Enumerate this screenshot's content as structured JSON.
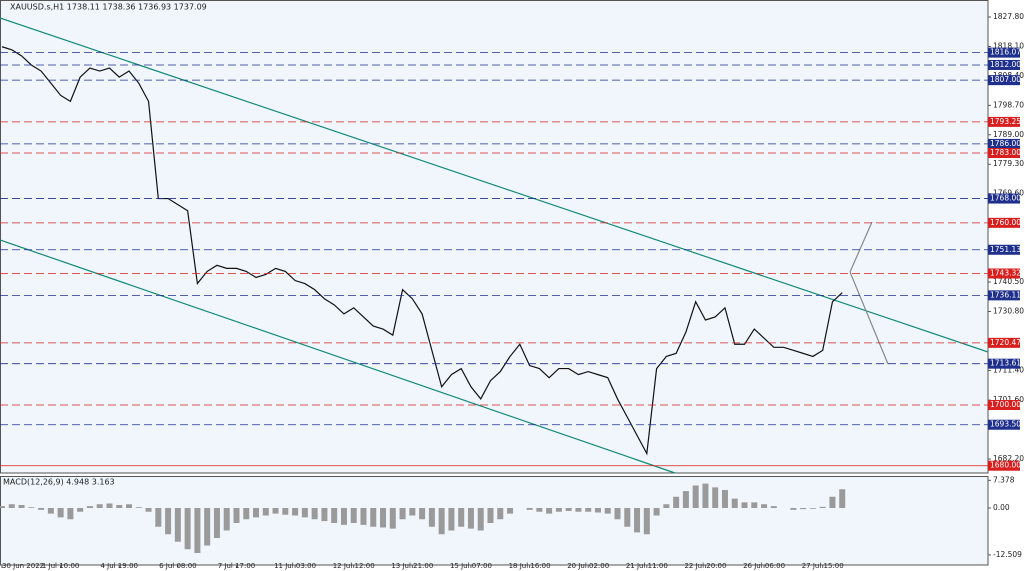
{
  "chart_data": [
    {
      "type": "line",
      "title": "XAUUSD.s,H1  1738.11 1738.36 1736.93 1737.09",
      "color": "#111111",
      "categories": [
        "30 Jun 2022",
        null,
        null,
        null,
        null,
        null,
        "1 Jul 10:00",
        null,
        null,
        null,
        null,
        null,
        "4 Jul 19:00",
        null,
        null,
        null,
        null,
        null,
        "6 Jul 08:00",
        null,
        null,
        null,
        null,
        null,
        "7 Jul 17:00",
        null,
        null,
        null,
        null,
        null,
        "11 Jul 03:00",
        null,
        null,
        null,
        null,
        null,
        "12 Jul 12:00",
        null,
        null,
        null,
        null,
        null,
        "13 Jul 21:00",
        null,
        null,
        null,
        null,
        null,
        "15 Jul 07:00",
        null,
        null,
        null,
        null,
        null,
        "18 Jul 16:00",
        null,
        null,
        null,
        null,
        null,
        "20 Jul 02:00",
        null,
        null,
        null,
        null,
        null,
        "21 Jul 11:00",
        null,
        null,
        null,
        null,
        null,
        "22 Jul 20:00",
        null,
        null,
        null,
        null,
        null,
        "26 Jul 06:00",
        null,
        null,
        null,
        null,
        null,
        "27 Jul 15:00",
        null,
        null
      ],
      "values": [
        1818,
        1817,
        1815,
        1812,
        1810,
        1806,
        1802,
        1800,
        1808,
        1811,
        1810,
        1811,
        1808,
        1810,
        1806,
        1800,
        1768,
        1768,
        1766,
        1764,
        1740,
        1744,
        1746,
        1745,
        1745,
        1744,
        1742,
        1743,
        1745,
        1744,
        1741,
        1740,
        1738,
        1735,
        1733,
        1730,
        1732,
        1729,
        1726,
        1725,
        1723,
        1738,
        1735,
        1730,
        1718,
        1706,
        1710,
        1712,
        1706,
        1702,
        1708,
        1711,
        1716,
        1720,
        1713,
        1712,
        1709,
        1712,
        1712,
        1710,
        1711,
        1710,
        1709,
        1702,
        1696,
        1690,
        1684,
        1712,
        1716,
        1717,
        1724,
        1734,
        1728,
        1729,
        1732,
        1720,
        1720,
        1725,
        1722,
        1719,
        1719,
        1718,
        1717,
        1716,
        1718,
        1734,
        1737
      ],
      "ylim": [
        1677.6,
        1833.4
      ],
      "yticks": [
        {
          "value": 1827.8,
          "label": "1827.80"
        },
        {
          "value": 1818.1,
          "label": "1818.10"
        },
        {
          "value": 1808.4,
          "label": "1808.40"
        },
        {
          "value": 1798.7,
          "label": "1798.70"
        },
        {
          "value": 1789.0,
          "label": "1789.00"
        },
        {
          "value": 1779.3,
          "label": "1779.30"
        },
        {
          "value": 1769.6,
          "label": "1769.60"
        },
        {
          "value": 1740.5,
          "label": "1740.50"
        },
        {
          "value": 1730.8,
          "label": "1730.80"
        },
        {
          "value": 1711.4,
          "label": "1711.40"
        },
        {
          "value": 1701.6,
          "label": "1701.60"
        },
        {
          "value": 1682.2,
          "label": "1682.20"
        }
      ],
      "levels": [
        {
          "value": 1816.07,
          "label": "1816.07",
          "color": "#1f2f8c"
        },
        {
          "value": 1812.0,
          "label": "1812.00",
          "color": "#1f2f8c"
        },
        {
          "value": 1807.0,
          "label": "1807.00",
          "color": "#1f2f8c"
        },
        {
          "value": 1793.25,
          "label": "1793.25",
          "color": "#d91e1e"
        },
        {
          "value": 1786.0,
          "label": "1786.00",
          "color": "#1f2f8c"
        },
        {
          "value": 1783.0,
          "label": "1783.00",
          "color": "#d91e1e"
        },
        {
          "value": 1768.0,
          "label": "1768.00",
          "color": "#1f2f8c"
        },
        {
          "value": 1760.0,
          "label": "1760.00",
          "color": "#d91e1e"
        },
        {
          "value": 1751.13,
          "label": "1751.13",
          "color": "#1f2f8c"
        },
        {
          "value": 1743.32,
          "label": "1743.32",
          "color": "#d91e1e"
        },
        {
          "value": 1736.11,
          "label": "1736.11",
          "color": "#1f2f8c"
        },
        {
          "value": 1720.47,
          "label": "1720.47",
          "color": "#d91e1e"
        },
        {
          "value": 1713.61,
          "label": "1713.61",
          "color": "#1f2f8c"
        },
        {
          "value": 1700.0,
          "label": "1700.00",
          "color": "#d91e1e"
        },
        {
          "value": 1693.5,
          "label": "1693.50",
          "color": "#1f2f8c"
        },
        {
          "value": 1680.0,
          "label": "1680.00",
          "color": "#d91e1e"
        }
      ]
    },
    {
      "type": "bar",
      "title": "MACD(12,26,9) 4.948 3.163",
      "color": "#9a9a9a",
      "values": [
        0.5,
        1,
        0.8,
        0.2,
        -0.5,
        -1.5,
        -2.5,
        -3,
        -1,
        0.5,
        1,
        1.2,
        0.8,
        1,
        0.2,
        -1,
        -5,
        -7,
        -9,
        -11,
        -12,
        -10,
        -8,
        -6,
        -4,
        -3,
        -2.5,
        -2,
        -1.5,
        -1.8,
        -2,
        -2.5,
        -3,
        -3.5,
        -4,
        -4.5,
        -4,
        -4.5,
        -5,
        -5.2,
        -5.5,
        -3,
        -2,
        -3,
        -5,
        -7,
        -6,
        -5,
        -5.5,
        -6,
        -4,
        -3,
        -1.5,
        0,
        -0.5,
        -1,
        -1.5,
        -1,
        -0.8,
        -1,
        -1,
        -1.2,
        -1.5,
        -3,
        -5,
        -6.5,
        -7,
        -2,
        1,
        3,
        4.5,
        6,
        6.5,
        5.5,
        4.8,
        2.5,
        1.5,
        1.5,
        1,
        0.5,
        0,
        -0.5,
        -0.3,
        -0.2,
        0.3,
        3,
        5
      ],
      "ylim": [
        -15.2,
        8.53
      ],
      "yticks": [
        7.378,
        {
          "value": 0,
          "label": "0.00"
        },
        -12.509
      ]
    }
  ]
}
